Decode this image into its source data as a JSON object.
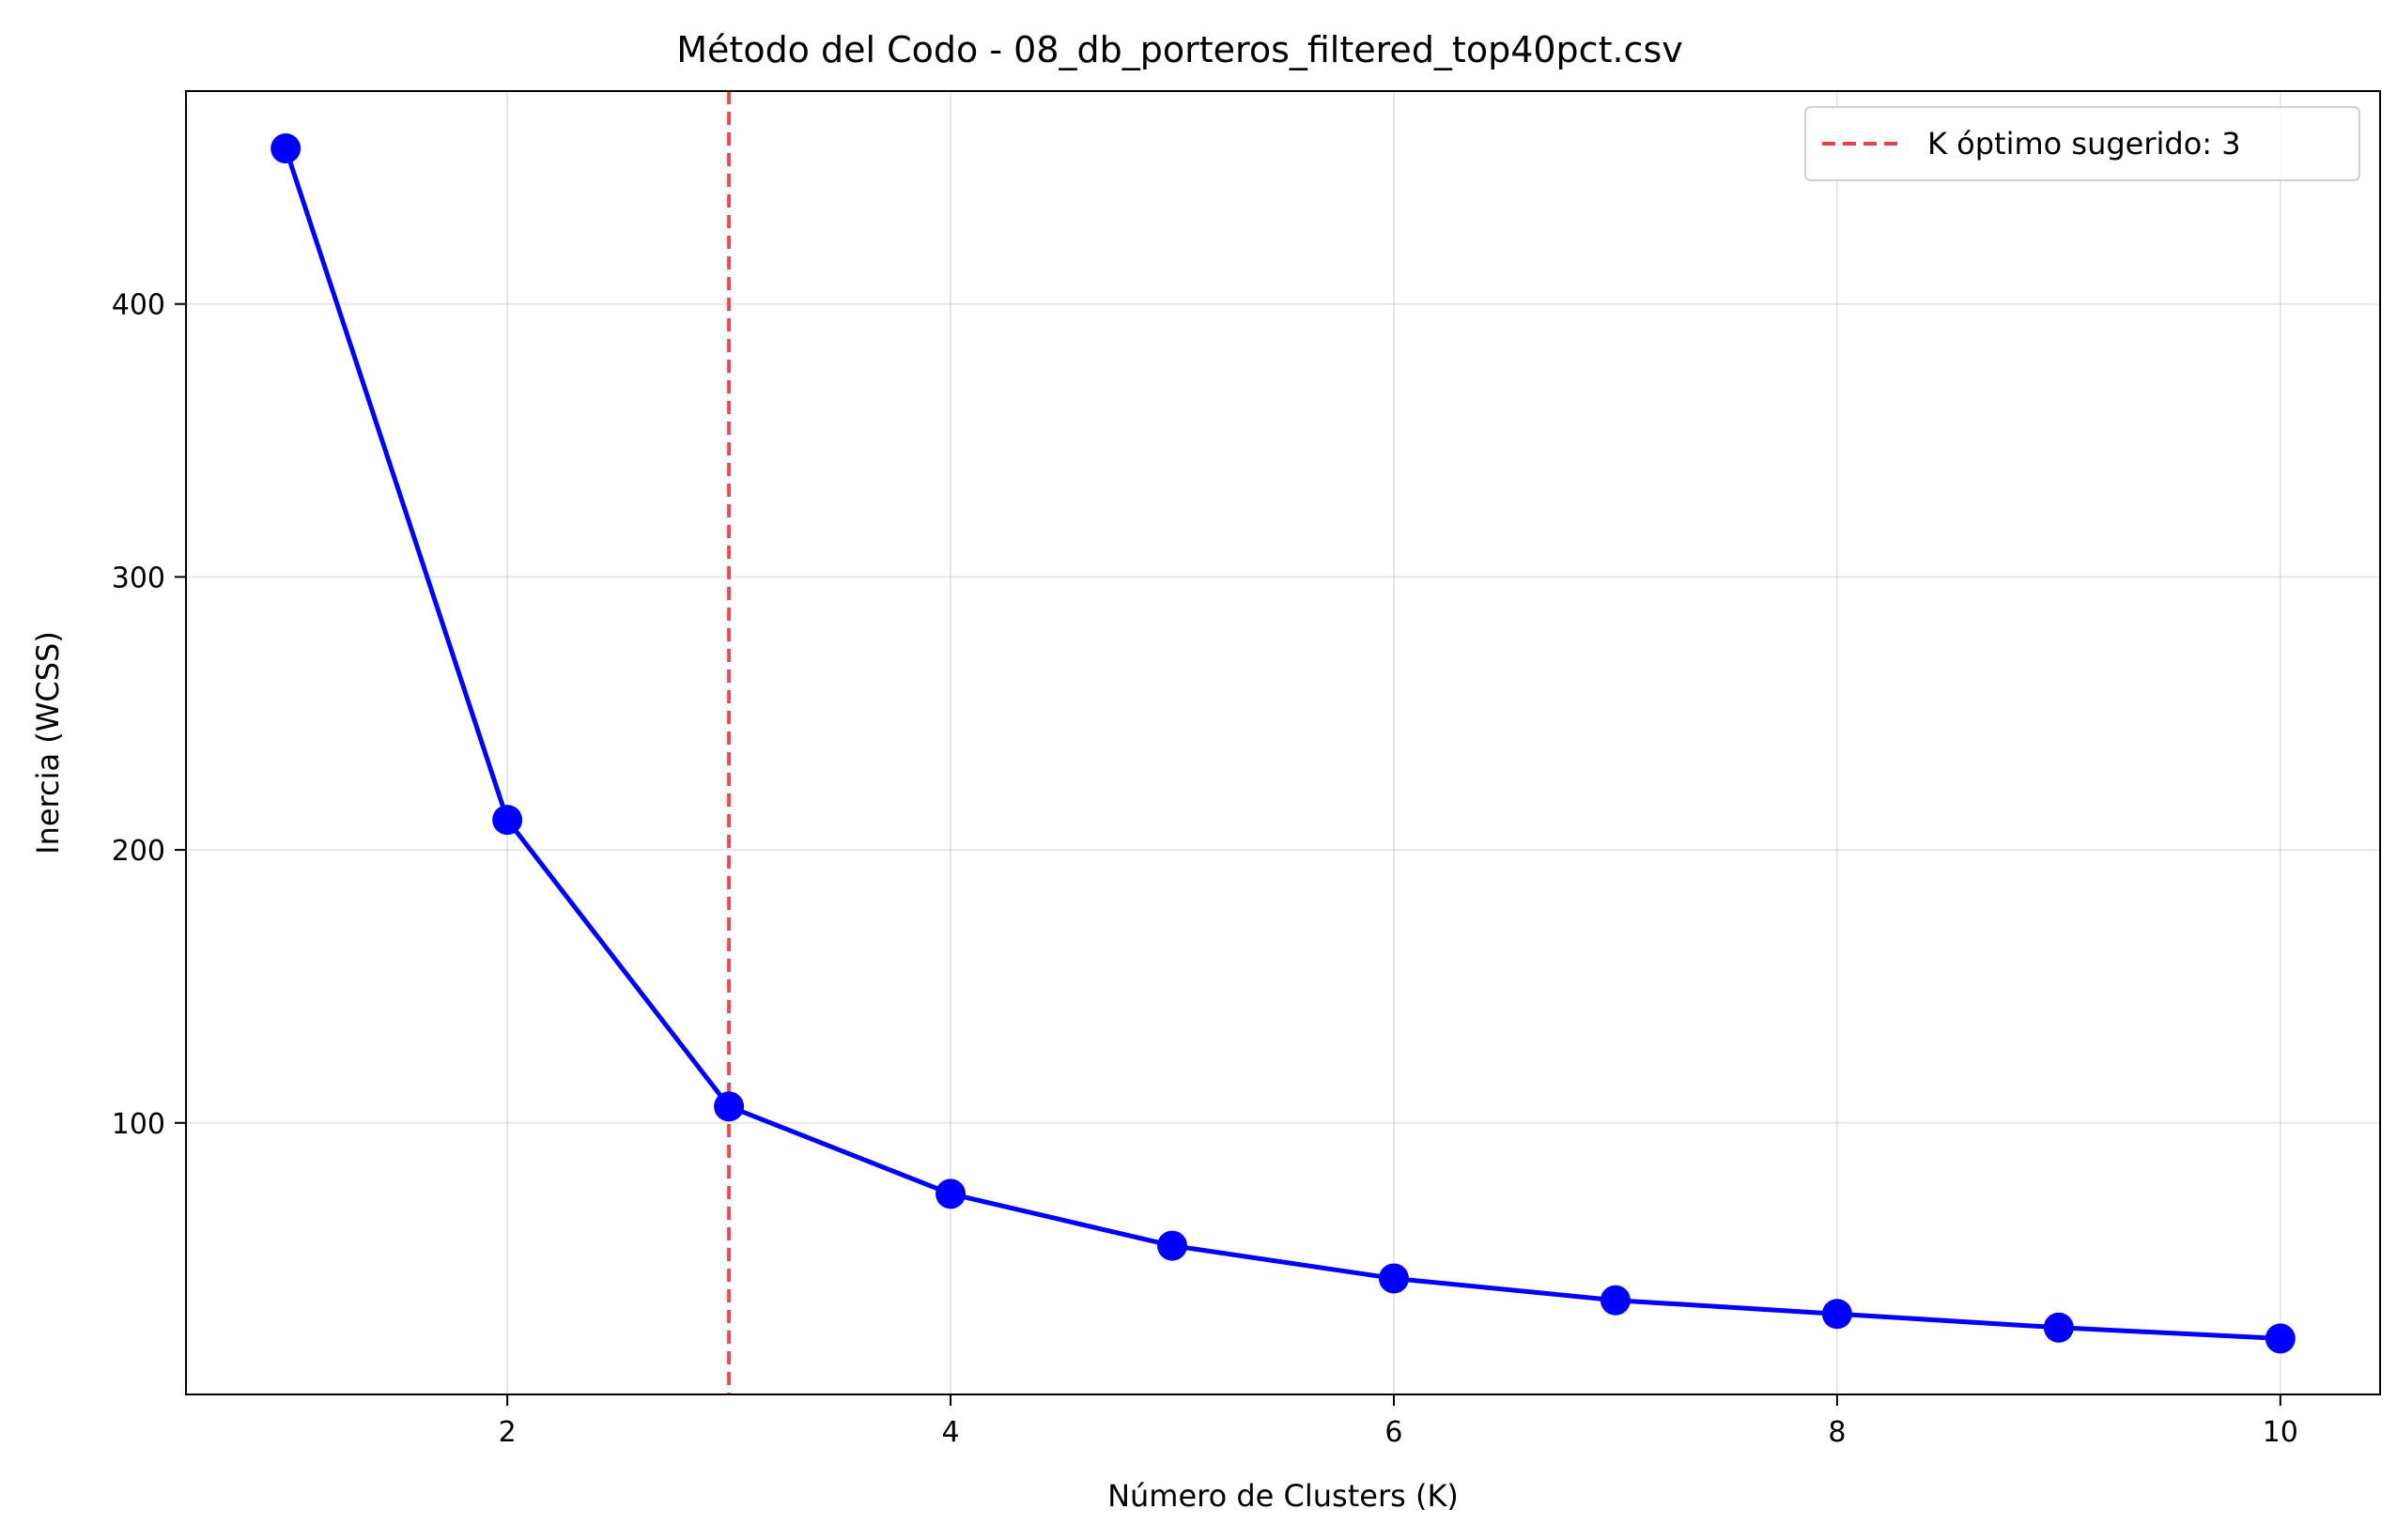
{
  "chart_data": {
    "type": "line",
    "title": "Método del Codo - 08_db_porteros_filtered_top40pct.csv",
    "xlabel": "Número de Clusters (K)",
    "ylabel": "Inercia (WCSS)",
    "x": [
      1,
      2,
      3,
      4,
      5,
      6,
      7,
      8,
      9,
      10
    ],
    "series": [
      {
        "values": [
          457,
          211,
          106,
          74,
          55,
          43,
          35,
          30,
          25,
          21
        ],
        "color": "#0000ff"
      }
    ],
    "xlim": [
      0.55,
      10.45
    ],
    "ylim": [
      0.5,
      478
    ],
    "xticks": [
      2,
      4,
      6,
      8,
      10
    ],
    "yticks": [
      100,
      200,
      300,
      400
    ],
    "grid": true,
    "reference_line": {
      "x": 3,
      "label": "K óptimo sugerido: 3",
      "color": "#e8404a",
      "style": "dashed"
    },
    "legend": {
      "placement": "top-right",
      "entries": [
        "K óptimo sugerido: 3"
      ]
    }
  }
}
